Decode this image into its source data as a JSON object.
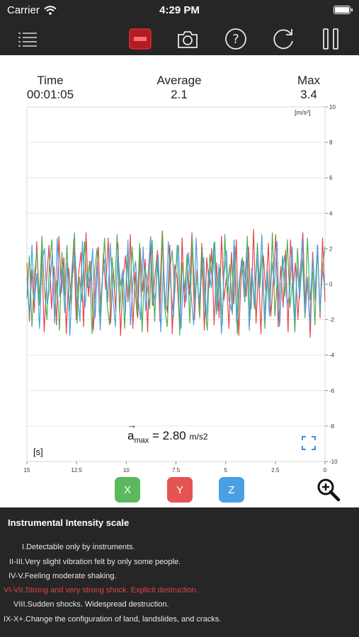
{
  "status": {
    "carrier": "Carrier",
    "time": "4:29 PM"
  },
  "toolbar": {
    "buttons": [
      {
        "name": "menu-icon"
      },
      {
        "name": "record-icon",
        "color": "#e0292f"
      },
      {
        "name": "camera-icon"
      },
      {
        "name": "help-icon"
      },
      {
        "name": "reset-icon"
      },
      {
        "name": "pause-icon"
      }
    ]
  },
  "readouts": {
    "time_label": "Time",
    "time_value": "00:01:05",
    "average_label": "Average",
    "average_value": "2.1",
    "max_label": "Max",
    "max_value": "3.4"
  },
  "chart_data": {
    "type": "line",
    "y_unit_label": "[m/s²]",
    "x_unit_label": "[s]",
    "xlim": [
      15,
      0
    ],
    "ylim": [
      -10,
      10
    ],
    "x_ticks": [
      "15",
      "12.5",
      "10",
      "7.5",
      "5",
      "2.5",
      "0"
    ],
    "y_ticks": [
      "10",
      "8",
      "6",
      "4",
      "2",
      "0",
      "-2",
      "-4",
      "-6",
      "-8",
      "-10"
    ],
    "grid": true,
    "series": [
      {
        "axis": "x",
        "color": "#e8454b",
        "values": [
          1.2,
          -2.1,
          0.8,
          -1.6,
          2.4,
          -0.9,
          1.9,
          -2.7,
          0.3,
          2.2,
          -1.4,
          1.0,
          -2.3,
          2.7,
          -0.5,
          1.5,
          -2.8,
          0.9,
          -1.1,
          2.5,
          -2.0,
          0.6,
          1.8,
          -2.4,
          2.9,
          -0.7,
          1.3,
          -2.6,
          0.4,
          2.1,
          -1.8,
          1.7,
          -0.3,
          2.6,
          -2.2,
          0.9,
          -1.5,
          2.3,
          -2.9,
          0.2,
          1.6,
          -1.0,
          2.8,
          -2.5,
          0.7,
          -1.9,
          2.0,
          -0.4,
          1.4,
          -2.7,
          2.4,
          -1.2,
          0.5,
          1.9,
          -2.1,
          3.0,
          -0.8,
          -1.6,
          2.2,
          -2.8,
          1.1,
          0.3,
          -2.4,
          2.6,
          -1.3,
          1.7,
          -0.6,
          2.9,
          -2.0,
          0.8,
          -1.7,
          2.3,
          -2.6,
          1.5,
          -0.2,
          2.0,
          -2.3,
          1.2,
          -1.9,
          2.7,
          -0.9,
          0.4,
          -2.5,
          1.8,
          -1.1,
          2.5,
          -2.9,
          0.6,
          1.3,
          -0.7,
          2.1,
          -1.4,
          3.1,
          -2.2,
          0.9,
          -2.8,
          1.6,
          -0.5,
          2.3,
          -1.8,
          0.2,
          2.8,
          -2.4,
          1.0,
          -1.3,
          1.9,
          -2.7,
          2.5,
          -0.3,
          1.2,
          -2.0,
          0.7,
          2.9,
          -1.6,
          0.4,
          -3.0,
          1.8,
          -0.9,
          2.2,
          -1.9,
          2.6,
          -1.0
        ]
      },
      {
        "axis": "y",
        "color": "#4caf50",
        "values": [
          -0.8,
          1.6,
          -2.4,
          0.5,
          1.9,
          -1.2,
          2.7,
          -0.3,
          -2.0,
          1.1,
          2.5,
          -1.7,
          0.2,
          -2.6,
          1.8,
          -0.6,
          2.2,
          -1.5,
          0.9,
          2.9,
          -2.2,
          0.4,
          -1.0,
          2.4,
          -0.2,
          1.3,
          -2.8,
          0.7,
          2.0,
          -1.9,
          0.1,
          2.6,
          -1.1,
          -2.3,
          1.5,
          -0.4,
          2.8,
          -1.6,
          0.6,
          -2.5,
          1.7,
          -0.9,
          2.1,
          -0.1,
          -1.8,
          2.3,
          -2.7,
          1.0,
          0.3,
          -1.4,
          2.5,
          -2.1,
          1.4,
          -0.7,
          2.9,
          -1.3,
          -2.4,
          0.8,
          1.9,
          -0.5,
          2.2,
          -2.9,
          1.2,
          -0.3,
          1.6,
          -2.2,
          2.6,
          -0.8,
          0.5,
          -1.9,
          2.0,
          -1.2,
          -2.6,
          1.7,
          0.2,
          2.4,
          -1.5,
          0.9,
          -2.3,
          2.8,
          -0.6,
          1.1,
          -1.7,
          2.1,
          -2.8,
          0.3,
          1.5,
          -1.0,
          2.7,
          -2.0,
          0.6,
          -1.4,
          2.3,
          -0.2,
          1.8,
          -2.5,
          0.8,
          -1.1,
          2.9,
          -1.8,
          0.4,
          -2.2,
          1.6,
          -0.7,
          2.5,
          -1.3,
          0.1,
          -2.7,
          2.0,
          -0.4,
          1.4,
          -1.9,
          2.6,
          -0.9,
          0.7,
          -2.3,
          2.2,
          -1.6,
          1.0,
          2.1
        ]
      },
      {
        "axis": "z",
        "color": "#4a9fe0",
        "values": [
          0.4,
          -1.8,
          2.2,
          -0.9,
          0.6,
          -2.5,
          1.4,
          2.0,
          -1.1,
          -0.3,
          1.7,
          -2.2,
          2.6,
          -0.7,
          0.9,
          -1.6,
          1.2,
          -2.9,
          0.3,
          1.8,
          -0.5,
          -2.1,
          2.4,
          -1.3,
          0.7,
          -0.2,
          2.0,
          -1.9,
          1.1,
          -2.6,
          0.5,
          1.5,
          -1.0,
          2.3,
          -0.6,
          -2.4,
          1.9,
          -0.1,
          0.8,
          -1.7,
          2.5,
          -2.3,
          0.2,
          1.3,
          -0.8,
          -2.0,
          2.1,
          -1.5,
          0.6,
          2.7,
          -1.2,
          -0.4,
          1.6,
          -2.7,
          0.9,
          -1.4,
          2.4,
          -0.3,
          -1.9,
          1.0,
          2.2,
          -2.5,
          0.4,
          -1.0,
          1.8,
          -0.6,
          -2.3,
          2.6,
          -1.1,
          0.3,
          1.5,
          -2.0,
          0.8,
          -0.2,
          2.3,
          -1.7,
          1.1,
          -2.8,
          0.5,
          1.9,
          -0.9,
          -1.5,
          2.5,
          -2.2,
          0.1,
          1.4,
          -0.7,
          2.0,
          -2.6,
          0.9,
          -1.3,
          1.7,
          -0.4,
          2.8,
          -2.1,
          0.6,
          -1.8,
          1.2,
          -0.1,
          2.4,
          -2.4,
          0.7,
          1.6,
          -1.2,
          -0.5,
          2.1,
          -2.0,
          1.0,
          -0.8,
          2.6,
          -1.6,
          0.3,
          -2.3,
          1.5,
          -0.6,
          2.2,
          -1.4,
          0.8,
          -0.3
        ]
      }
    ],
    "annotation": {
      "symbol": "a",
      "subscript": "max",
      "value": "2.80",
      "unit": "m/s2"
    }
  },
  "axis_buttons": [
    {
      "label": "X",
      "color": "#5cb85c"
    },
    {
      "label": "Y",
      "color": "#e55353"
    },
    {
      "label": "Z",
      "color": "#4a9fe0"
    }
  ],
  "intensity": {
    "title": "Instrumental Intensity scale",
    "rows": [
      {
        "text": "I.Detectable only by instruments.",
        "highlight": false
      },
      {
        "text": "II-III.Very slight vibration felt by only some people.",
        "highlight": false
      },
      {
        "text": "IV-V.Feeling moderate shaking.",
        "highlight": false
      },
      {
        "text": "VI-VII.Strong and very strong shock. Explicit destruction.",
        "highlight": true
      },
      {
        "text": "VIII.Sudden shocks. Widespread destruction.",
        "highlight": false
      },
      {
        "text": "IX-X+.Change the configuration of land, landslides, and cracks.",
        "highlight": false
      }
    ]
  }
}
